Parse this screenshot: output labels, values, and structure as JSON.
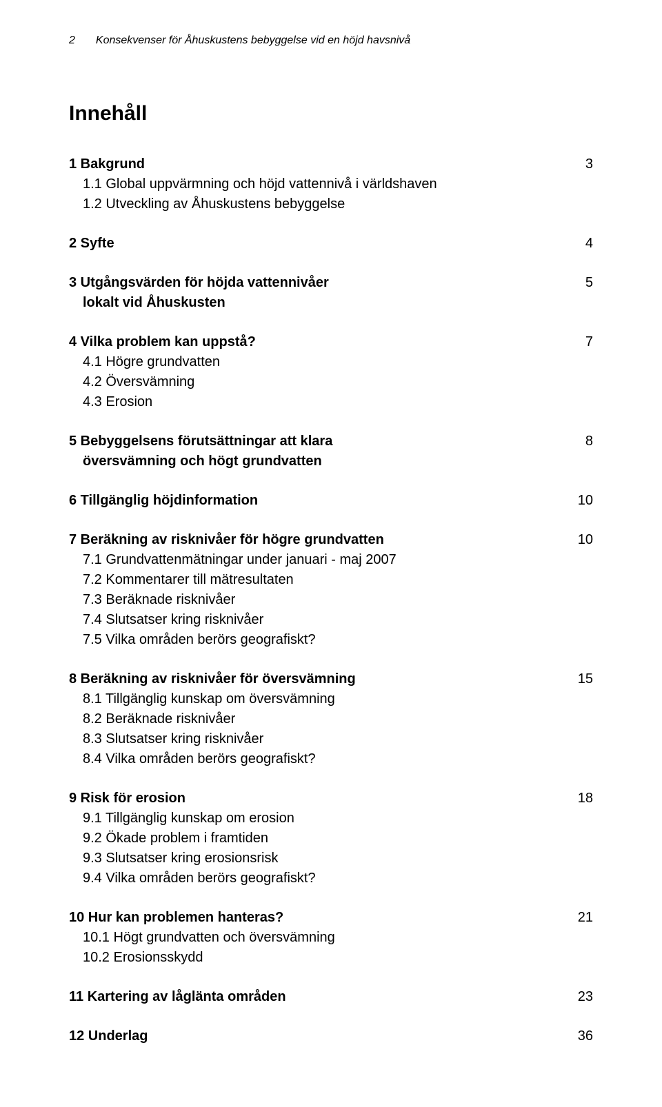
{
  "header": {
    "page_number": "2",
    "running_title": "Konsekvenser för Åhuskustens bebyggelse vid en höjd havsnivå"
  },
  "toc_title": "Innehåll",
  "sections": [
    {
      "heading": "1 Bakgrund",
      "page": "3",
      "subs": [
        {
          "text": "1.1 Global uppvärmning och höjd vattennivå i världshaven"
        },
        {
          "text": "1.2 Utveckling av Åhuskustens bebyggelse"
        }
      ]
    },
    {
      "heading": "2 Syfte",
      "page": "4",
      "subs": []
    },
    {
      "heading": "3 Utgångsvärden för höjda vattennivåer",
      "heading_cont": "lokalt vid Åhuskusten",
      "page": "5",
      "subs": []
    },
    {
      "heading": "4 Vilka problem kan uppstå?",
      "page": "7",
      "subs": [
        {
          "text": "4.1 Högre grundvatten"
        },
        {
          "text": "4.2 Översvämning"
        },
        {
          "text": "4.3 Erosion"
        }
      ]
    },
    {
      "heading": "5 Bebyggelsens förutsättningar att klara",
      "heading_cont": "översvämning och högt grundvatten",
      "page": "8",
      "subs": []
    },
    {
      "heading": "6 Tillgänglig höjdinformation",
      "page": "10",
      "subs": []
    },
    {
      "heading": "7 Beräkning av risknivåer för högre grundvatten",
      "page": "10",
      "subs": [
        {
          "text": "7.1 Grundvattenmätningar under januari - maj 2007"
        },
        {
          "text": "7.2 Kommentarer till mätresultaten"
        },
        {
          "text": "7.3 Beräknade risknivåer"
        },
        {
          "text": "7.4 Slutsatser kring risknivåer"
        },
        {
          "text": "7.5 Vilka områden berörs geografiskt?"
        }
      ]
    },
    {
      "heading": "8 Beräkning av risknivåer för översvämning",
      "page": "15",
      "subs": [
        {
          "text": "8.1 Tillgänglig kunskap om översvämning"
        },
        {
          "text": "8.2 Beräknade risknivåer"
        },
        {
          "text": "8.3 Slutsatser kring risknivåer"
        },
        {
          "text": "8.4 Vilka områden berörs geografiskt?"
        }
      ]
    },
    {
      "heading": "9 Risk för erosion",
      "page": "18",
      "subs": [
        {
          "text": "9.1 Tillgänglig kunskap om erosion"
        },
        {
          "text": "9.2 Ökade problem i framtiden"
        },
        {
          "text": "9.3 Slutsatser kring erosionsrisk"
        },
        {
          "text": "9.4 Vilka områden berörs geografiskt?"
        }
      ]
    },
    {
      "heading": "10 Hur kan problemen hanteras?",
      "page": "21",
      "subs": [
        {
          "text": "10.1 Högt grundvatten och översvämning"
        },
        {
          "text": "10.2 Erosionsskydd"
        }
      ]
    },
    {
      "heading": "11 Kartering av låglänta områden",
      "page": "23",
      "subs": []
    },
    {
      "heading": "12 Underlag",
      "page": "36",
      "subs": []
    }
  ]
}
